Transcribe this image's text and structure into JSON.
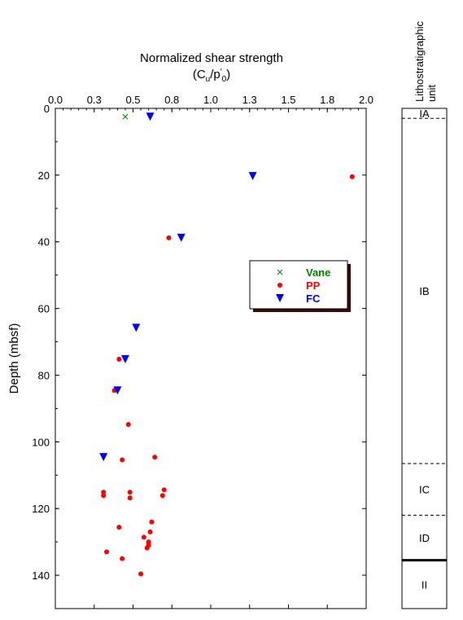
{
  "chart_data": {
    "type": "scatter",
    "title": "Normalized shear strength",
    "subtitle": "(Cu/p'0)",
    "xlabel": "Normalized shear strength",
    "ylabel": "Depth (mbsf)",
    "xlim": [
      0,
      2.0
    ],
    "ylim": [
      0,
      150
    ],
    "y_inverted": true,
    "x_axis_position": "top",
    "x_ticks": [
      "0.0",
      "0.3",
      "0.5",
      "0.8",
      "1.0",
      "1.3",
      "1.5",
      "1.8",
      "2.0"
    ],
    "x_tick_values": [
      0.0,
      0.25,
      0.5,
      0.75,
      1.0,
      1.25,
      1.5,
      1.75,
      2.0
    ],
    "y_ticks": [
      "0",
      "20",
      "40",
      "60",
      "80",
      "100",
      "120",
      "140"
    ],
    "y_tick_values": [
      0,
      20,
      40,
      60,
      80,
      100,
      120,
      140
    ],
    "grid": false,
    "legend_position": "center-right",
    "series": [
      {
        "name": "Vane",
        "marker": "x",
        "color": "#008000",
        "points": [
          [
            0.45,
            2.5
          ]
        ]
      },
      {
        "name": "PP",
        "marker": "circle",
        "color": "#ff0000",
        "points": [
          [
            1.91,
            20.5
          ],
          [
            0.73,
            38.8
          ],
          [
            0.41,
            75.2
          ],
          [
            0.38,
            84.6
          ],
          [
            0.47,
            94.8
          ],
          [
            0.64,
            104.6
          ],
          [
            0.43,
            105.4
          ],
          [
            0.7,
            114.4
          ],
          [
            0.31,
            115.1
          ],
          [
            0.48,
            115.1
          ],
          [
            0.31,
            116.1
          ],
          [
            0.69,
            116.1
          ],
          [
            0.48,
            116.8
          ],
          [
            0.62,
            124.0
          ],
          [
            0.41,
            125.6
          ],
          [
            0.61,
            127.0
          ],
          [
            0.57,
            128.6
          ],
          [
            0.6,
            130.0
          ],
          [
            0.6,
            131.0
          ],
          [
            0.59,
            131.8
          ],
          [
            0.33,
            133.0
          ],
          [
            0.43,
            135.0
          ],
          [
            0.55,
            139.6
          ]
        ]
      },
      {
        "name": "FC",
        "marker": "triangle-down",
        "color": "#0000ff",
        "points": [
          [
            0.61,
            2.5
          ],
          [
            1.27,
            20.3
          ],
          [
            0.81,
            38.8
          ],
          [
            0.52,
            65.8
          ],
          [
            0.45,
            75.2
          ],
          [
            0.4,
            84.6
          ],
          [
            0.31,
            104.6
          ]
        ]
      }
    ]
  },
  "lithology": {
    "title": "Lithostratigraphic unit",
    "depth_range": [
      0,
      150
    ],
    "units": [
      {
        "label": "IA",
        "top": 0,
        "bottom": 3,
        "boundary": "dashed"
      },
      {
        "label": "IB",
        "top": 3,
        "bottom": 106.5,
        "boundary": "dashed"
      },
      {
        "label": "IC",
        "top": 106.5,
        "bottom": 122,
        "boundary": "dashed"
      },
      {
        "label": "ID",
        "top": 122,
        "bottom": 135.5,
        "boundary": "solid-thick"
      },
      {
        "label": "II",
        "top": 135.5,
        "bottom": 150,
        "boundary": "none"
      }
    ]
  },
  "text": {
    "title_line1": "Normalized shear strength",
    "title_line2_C": "(C",
    "title_line2_u": "u",
    "title_line2_mid": "/p",
    "title_line2_0": "0",
    "title_line2_end": ")",
    "title_line2_prime": "′",
    "ylabel": "Depth (mbsf)",
    "litho_line1": "Lithostratigraphic",
    "litho_line2": "unit"
  },
  "colors": {
    "vane": "#008000",
    "pp": "#ff0000",
    "fc": "#0000ff",
    "legend_shadow": "#3a0a0a"
  }
}
